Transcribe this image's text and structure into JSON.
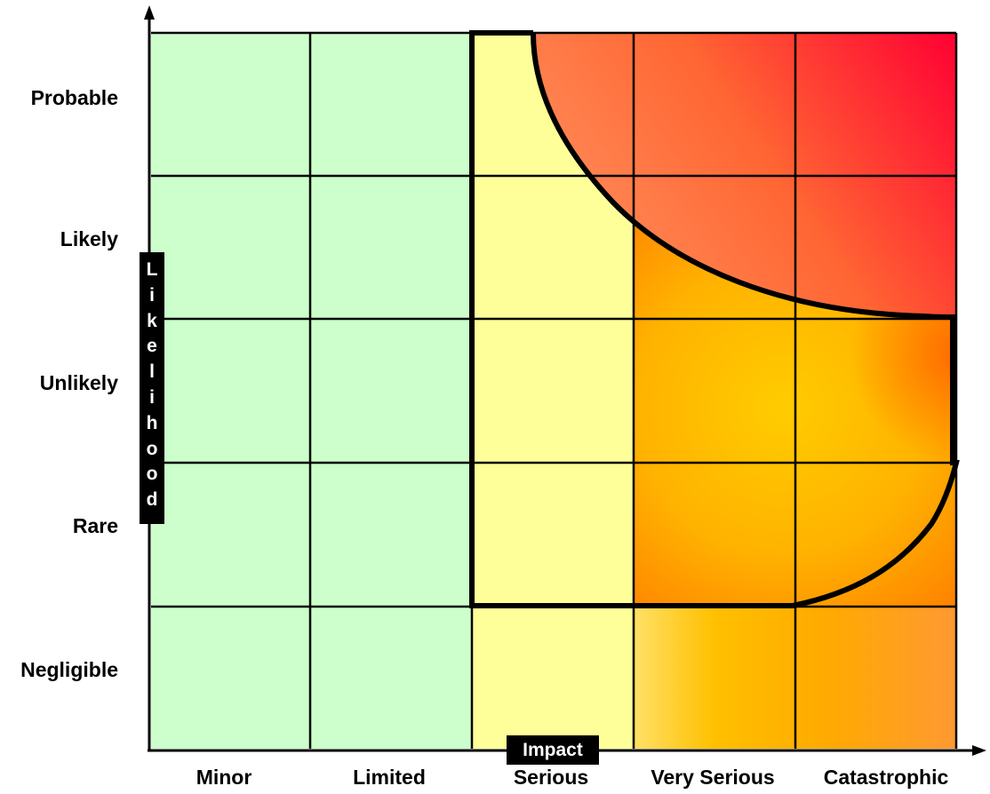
{
  "axes": {
    "y_title": "Likelihood",
    "x_title": "Impact"
  },
  "rows": [
    "Probable",
    "Likely",
    "Unlikely",
    "Rare",
    "Negligible"
  ],
  "columns": [
    "Minor",
    "Limited",
    "Serious",
    "Very Serious",
    "Catastrophic"
  ],
  "colors": {
    "low_zone": "#ccffcc",
    "medium_zone": "#ffff99",
    "high_zone": "#ffc000",
    "critical_zone": "#ff6633",
    "extreme_corner": "#ff0033",
    "grid_lines": "#000000"
  }
}
